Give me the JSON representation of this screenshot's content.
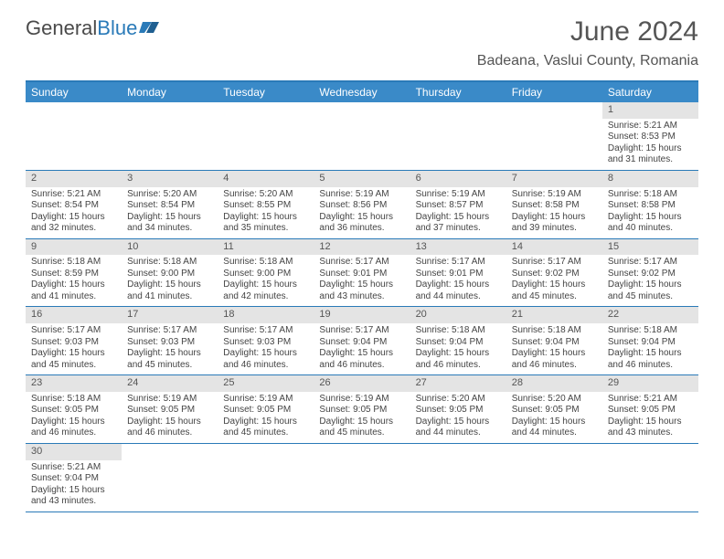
{
  "logo": {
    "textA": "General",
    "textB": "Blue"
  },
  "title": "June 2024",
  "location": "Badeana, Vaslui County, Romania",
  "colors": {
    "headerBar": "#3a8ac8",
    "accentBorder": "#2a7ab8",
    "dayNumBg": "#e4e4e4",
    "text": "#4a4a4a"
  },
  "daysOfWeek": [
    "Sunday",
    "Monday",
    "Tuesday",
    "Wednesday",
    "Thursday",
    "Friday",
    "Saturday"
  ],
  "calendar": {
    "firstDayOffset": 6,
    "days": [
      {
        "n": 1,
        "sunrise": "5:21 AM",
        "sunset": "8:53 PM",
        "daylightH": 15,
        "daylightM": 31
      },
      {
        "n": 2,
        "sunrise": "5:21 AM",
        "sunset": "8:54 PM",
        "daylightH": 15,
        "daylightM": 32
      },
      {
        "n": 3,
        "sunrise": "5:20 AM",
        "sunset": "8:54 PM",
        "daylightH": 15,
        "daylightM": 34
      },
      {
        "n": 4,
        "sunrise": "5:20 AM",
        "sunset": "8:55 PM",
        "daylightH": 15,
        "daylightM": 35
      },
      {
        "n": 5,
        "sunrise": "5:19 AM",
        "sunset": "8:56 PM",
        "daylightH": 15,
        "daylightM": 36
      },
      {
        "n": 6,
        "sunrise": "5:19 AM",
        "sunset": "8:57 PM",
        "daylightH": 15,
        "daylightM": 37
      },
      {
        "n": 7,
        "sunrise": "5:19 AM",
        "sunset": "8:58 PM",
        "daylightH": 15,
        "daylightM": 39
      },
      {
        "n": 8,
        "sunrise": "5:18 AM",
        "sunset": "8:58 PM",
        "daylightH": 15,
        "daylightM": 40
      },
      {
        "n": 9,
        "sunrise": "5:18 AM",
        "sunset": "8:59 PM",
        "daylightH": 15,
        "daylightM": 41
      },
      {
        "n": 10,
        "sunrise": "5:18 AM",
        "sunset": "9:00 PM",
        "daylightH": 15,
        "daylightM": 41
      },
      {
        "n": 11,
        "sunrise": "5:18 AM",
        "sunset": "9:00 PM",
        "daylightH": 15,
        "daylightM": 42
      },
      {
        "n": 12,
        "sunrise": "5:17 AM",
        "sunset": "9:01 PM",
        "daylightH": 15,
        "daylightM": 43
      },
      {
        "n": 13,
        "sunrise": "5:17 AM",
        "sunset": "9:01 PM",
        "daylightH": 15,
        "daylightM": 44
      },
      {
        "n": 14,
        "sunrise": "5:17 AM",
        "sunset": "9:02 PM",
        "daylightH": 15,
        "daylightM": 45
      },
      {
        "n": 15,
        "sunrise": "5:17 AM",
        "sunset": "9:02 PM",
        "daylightH": 15,
        "daylightM": 45
      },
      {
        "n": 16,
        "sunrise": "5:17 AM",
        "sunset": "9:03 PM",
        "daylightH": 15,
        "daylightM": 45
      },
      {
        "n": 17,
        "sunrise": "5:17 AM",
        "sunset": "9:03 PM",
        "daylightH": 15,
        "daylightM": 45
      },
      {
        "n": 18,
        "sunrise": "5:17 AM",
        "sunset": "9:03 PM",
        "daylightH": 15,
        "daylightM": 46
      },
      {
        "n": 19,
        "sunrise": "5:17 AM",
        "sunset": "9:04 PM",
        "daylightH": 15,
        "daylightM": 46
      },
      {
        "n": 20,
        "sunrise": "5:18 AM",
        "sunset": "9:04 PM",
        "daylightH": 15,
        "daylightM": 46
      },
      {
        "n": 21,
        "sunrise": "5:18 AM",
        "sunset": "9:04 PM",
        "daylightH": 15,
        "daylightM": 46
      },
      {
        "n": 22,
        "sunrise": "5:18 AM",
        "sunset": "9:04 PM",
        "daylightH": 15,
        "daylightM": 46
      },
      {
        "n": 23,
        "sunrise": "5:18 AM",
        "sunset": "9:05 PM",
        "daylightH": 15,
        "daylightM": 46
      },
      {
        "n": 24,
        "sunrise": "5:19 AM",
        "sunset": "9:05 PM",
        "daylightH": 15,
        "daylightM": 46
      },
      {
        "n": 25,
        "sunrise": "5:19 AM",
        "sunset": "9:05 PM",
        "daylightH": 15,
        "daylightM": 45
      },
      {
        "n": 26,
        "sunrise": "5:19 AM",
        "sunset": "9:05 PM",
        "daylightH": 15,
        "daylightM": 45
      },
      {
        "n": 27,
        "sunrise": "5:20 AM",
        "sunset": "9:05 PM",
        "daylightH": 15,
        "daylightM": 44
      },
      {
        "n": 28,
        "sunrise": "5:20 AM",
        "sunset": "9:05 PM",
        "daylightH": 15,
        "daylightM": 44
      },
      {
        "n": 29,
        "sunrise": "5:21 AM",
        "sunset": "9:05 PM",
        "daylightH": 15,
        "daylightM": 43
      },
      {
        "n": 30,
        "sunrise": "5:21 AM",
        "sunset": "9:04 PM",
        "daylightH": 15,
        "daylightM": 43
      }
    ]
  },
  "labels": {
    "sunrise": "Sunrise:",
    "sunset": "Sunset:",
    "daylight": "Daylight:",
    "hours": "hours",
    "and": "and",
    "minutes": "minutes."
  }
}
